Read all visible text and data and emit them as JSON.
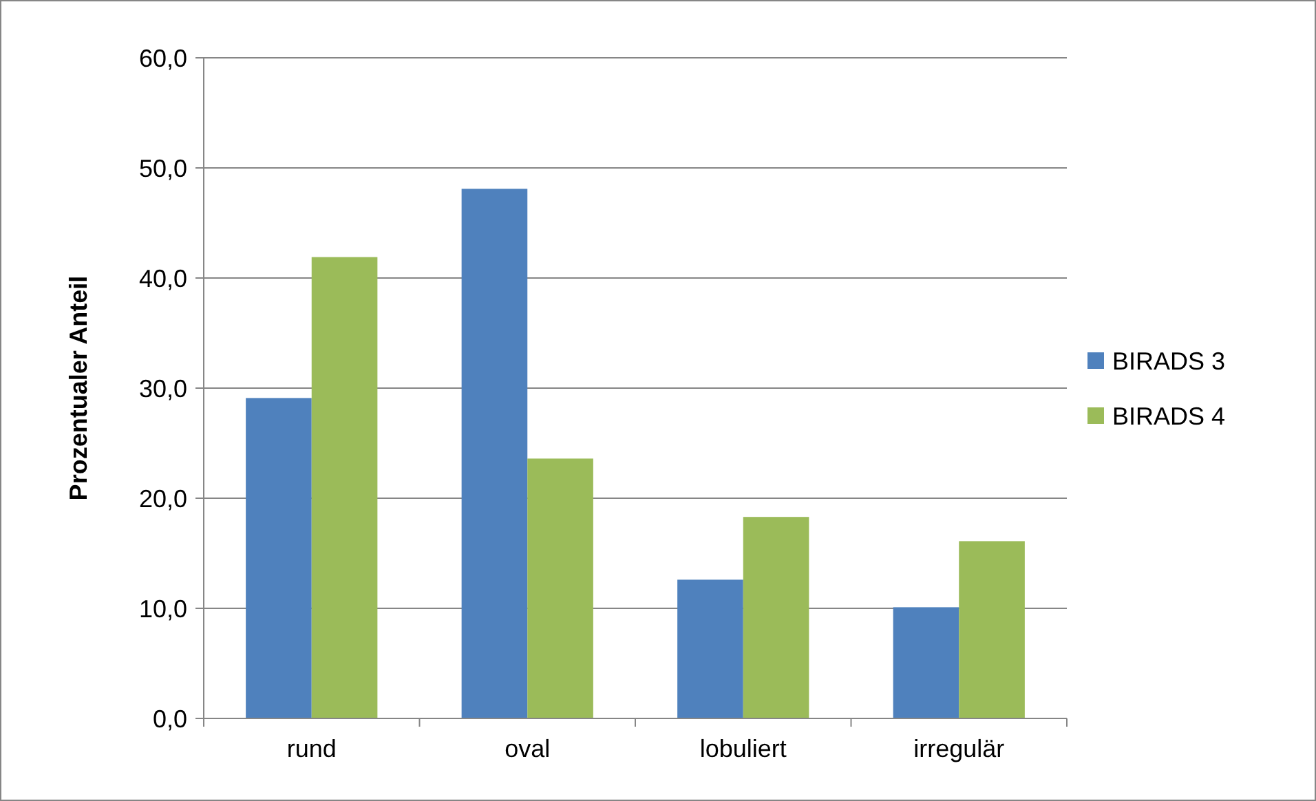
{
  "chart_data": {
    "type": "bar",
    "ylabel": "Prozentualer Anteil",
    "categories": [
      "rund",
      "oval",
      "lobuliert",
      "irregulär"
    ],
    "series": [
      {
        "name": "BIRADS 3",
        "color": "#4f81bd",
        "values": [
          29.1,
          48.1,
          12.6,
          10.1
        ]
      },
      {
        "name": "BIRADS 4",
        "color": "#9bbb59",
        "values": [
          41.9,
          23.6,
          18.3,
          16.1
        ]
      }
    ],
    "ylim": [
      0,
      60
    ],
    "yticks": [
      {
        "value": 0,
        "label": "0,0"
      },
      {
        "value": 10,
        "label": "10,0"
      },
      {
        "value": 20,
        "label": "20,0"
      },
      {
        "value": 30,
        "label": "30,0"
      },
      {
        "value": 40,
        "label": "40,0"
      },
      {
        "value": 50,
        "label": "50,0"
      },
      {
        "value": 60,
        "label": "60,0"
      }
    ],
    "grid": "y",
    "legend": "right"
  }
}
